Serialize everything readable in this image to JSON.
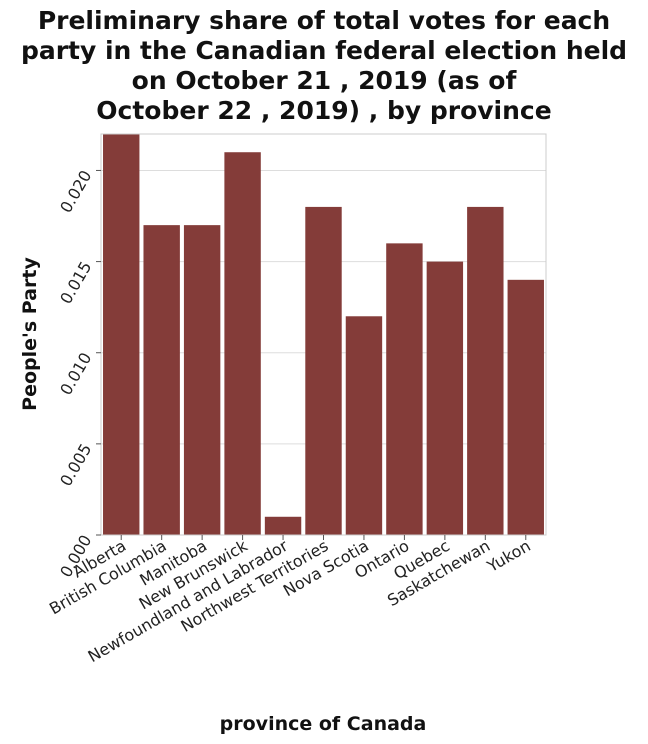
{
  "chart_data": {
    "type": "bar",
    "title": "Preliminary share of total votes for each party in the Canadian federal election held on October 21 , 2019 (as of October 22 , 2019) , by province",
    "xlabel": "province of Canada",
    "ylabel": "People's Party",
    "categories": [
      "Alberta",
      "British Columbia",
      "Manitoba",
      "New Brunswick",
      "Newfoundland and Labrador",
      "Northwest Territories",
      "Nova Scotia",
      "Ontario",
      "Quebec",
      "Saskatchewan",
      "Yukon"
    ],
    "values": [
      0.022,
      0.017,
      0.017,
      0.021,
      0.001,
      0.018,
      0.012,
      0.016,
      0.015,
      0.018,
      0.014
    ],
    "ylim": [
      0,
      0.022
    ],
    "yticks": [
      0.0,
      0.005,
      0.01,
      0.015,
      0.02
    ],
    "ytick_labels": [
      "0.000",
      "0.005",
      "0.010",
      "0.015",
      "0.020"
    ],
    "grid": true,
    "bar_color": "#843c39"
  }
}
